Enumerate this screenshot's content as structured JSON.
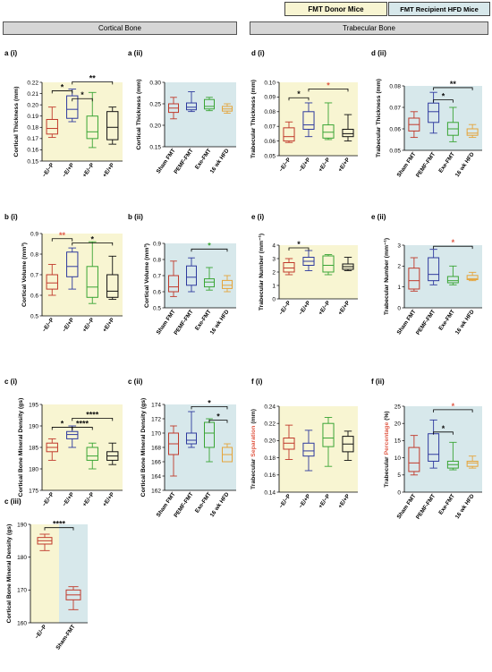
{
  "headers": {
    "cortical": "Cortical Bone",
    "trabecular": "Trabecular Bone",
    "legend_donor": "FMT Donor Mice",
    "legend_recipient": "FMT Recipient HFD Mice"
  },
  "colors": {
    "donor_bg": "#f8f5d2",
    "recipient_bg": "#d7e8eb",
    "header_bg": "#d6d6d6",
    "red": "#c0392b",
    "blue": "#2e3a9e",
    "green": "#3aa535",
    "black": "#111111",
    "orange": "#e5a43a",
    "sig_red": "#e05a47"
  },
  "donor_labels": [
    "−E/−P",
    "−E/+P",
    "+E/−P",
    "+E/+P"
  ],
  "recipient_labels": [
    "Sham FMT",
    "PEMF-FMT",
    "Exe-FMT",
    "16 wk HFD"
  ],
  "chart_data": [
    {
      "id": "ai",
      "panel": "a (i)",
      "type": "box",
      "bg": "donor",
      "ylabel": "Cortical Thickness (mm)",
      "ylim": [
        0.15,
        0.22
      ],
      "yticks": [
        0.15,
        0.16,
        0.17,
        0.18,
        0.19,
        0.2,
        0.21,
        0.22
      ],
      "ydec": 2,
      "categories": [
        "−E/−P",
        "−E/+P",
        "+E/−P",
        "+E/+P"
      ],
      "boxes": [
        {
          "min": 0.171,
          "q1": 0.174,
          "median": 0.179,
          "q3": 0.187,
          "max": 0.198,
          "color": "red"
        },
        {
          "min": 0.185,
          "q1": 0.188,
          "median": 0.196,
          "q3": 0.208,
          "max": 0.214,
          "color": "blue"
        },
        {
          "min": 0.162,
          "q1": 0.17,
          "median": 0.176,
          "q3": 0.19,
          "max": 0.211,
          "color": "green"
        },
        {
          "min": 0.165,
          "q1": 0.169,
          "median": 0.18,
          "q3": 0.194,
          "max": 0.198,
          "color": "black"
        }
      ],
      "sig": [
        {
          "from": 0,
          "to": 1,
          "y": 0.2125,
          "label": "*",
          "color": "black"
        },
        {
          "from": 1,
          "to": 2,
          "y": 0.2055,
          "label": "*",
          "color": "black"
        },
        {
          "from": 1,
          "to": 3,
          "y": 0.2205,
          "label": "**",
          "color": "black"
        }
      ]
    },
    {
      "id": "aii",
      "panel": "a (ii)",
      "type": "box",
      "bg": "recipient",
      "ylabel": "Cortical Thickness (mm)",
      "ylim": [
        0.15,
        0.3
      ],
      "yticks": [
        0.15,
        0.2,
        0.25,
        0.3
      ],
      "ydec": 2,
      "categories": [
        "Sham FMT",
        "PEMF-FMT",
        "Exe-FMT",
        "16 wk HFD"
      ],
      "boxes": [
        {
          "min": 0.215,
          "q1": 0.23,
          "median": 0.24,
          "q3": 0.25,
          "max": 0.265,
          "color": "red"
        },
        {
          "min": 0.232,
          "q1": 0.236,
          "median": 0.242,
          "q3": 0.252,
          "max": 0.278,
          "color": "blue"
        },
        {
          "min": 0.234,
          "q1": 0.238,
          "median": 0.244,
          "q3": 0.26,
          "max": 0.265,
          "color": "green"
        },
        {
          "min": 0.228,
          "q1": 0.233,
          "median": 0.238,
          "q3": 0.244,
          "max": 0.25,
          "color": "orange"
        }
      ],
      "sig": []
    },
    {
      "id": "di",
      "panel": "d (i)",
      "type": "box",
      "bg": "donor",
      "ylabel": "Trabecular Thickness (mm)",
      "ylim": [
        0.05,
        0.1
      ],
      "yticks": [
        0.05,
        0.06,
        0.07,
        0.08,
        0.09,
        0.1
      ],
      "ydec": 2,
      "categories": [
        "−E/−P",
        "−E/+P",
        "+E/−P",
        "+E/+P"
      ],
      "boxes": [
        {
          "min": 0.059,
          "q1": 0.06,
          "median": 0.063,
          "q3": 0.069,
          "max": 0.073,
          "color": "red"
        },
        {
          "min": 0.063,
          "q1": 0.068,
          "median": 0.071,
          "q3": 0.08,
          "max": 0.086,
          "color": "blue"
        },
        {
          "min": 0.061,
          "q1": 0.062,
          "median": 0.066,
          "q3": 0.071,
          "max": 0.086,
          "color": "green"
        },
        {
          "min": 0.06,
          "q1": 0.063,
          "median": 0.065,
          "q3": 0.068,
          "max": 0.078,
          "color": "black"
        }
      ],
      "sig": [
        {
          "from": 0,
          "to": 1,
          "y": 0.0895,
          "label": "*",
          "color": "black"
        },
        {
          "from": 1,
          "to": 3,
          "y": 0.0955,
          "label": "*",
          "color": "sig_red"
        }
      ]
    },
    {
      "id": "dii",
      "panel": "d (ii)",
      "type": "box",
      "bg": "recipient",
      "ylabel": "Trabecular Thickness (mm)",
      "ylim": [
        0.05,
        0.08
      ],
      "yticks": [
        0.05,
        0.06,
        0.07,
        0.08
      ],
      "ydec": 2,
      "categories": [
        "Sham FMT",
        "PEMF-FMT",
        "Exe-FMT",
        "16 wk HFD"
      ],
      "boxes": [
        {
          "min": 0.056,
          "q1": 0.059,
          "median": 0.062,
          "q3": 0.065,
          "max": 0.068,
          "color": "red"
        },
        {
          "min": 0.058,
          "q1": 0.063,
          "median": 0.068,
          "q3": 0.072,
          "max": 0.077,
          "color": "blue"
        },
        {
          "min": 0.054,
          "q1": 0.057,
          "median": 0.06,
          "q3": 0.063,
          "max": 0.07,
          "color": "green"
        },
        {
          "min": 0.056,
          "q1": 0.057,
          "median": 0.058,
          "q3": 0.06,
          "max": 0.062,
          "color": "orange"
        }
      ],
      "sig": [
        {
          "from": 1,
          "to": 2,
          "y": 0.0735,
          "label": "*",
          "color": "black"
        },
        {
          "from": 1,
          "to": 3,
          "y": 0.0792,
          "label": "**",
          "color": "black"
        }
      ]
    },
    {
      "id": "bi",
      "panel": "b (i)",
      "type": "box",
      "bg": "donor",
      "ylabel": "Cortical Volume (mm³)",
      "ylim": [
        0.5,
        0.9
      ],
      "yticks": [
        0.5,
        0.6,
        0.7,
        0.8,
        0.9
      ],
      "ydec": 1,
      "categories": [
        "−E/−P",
        "−E/+P",
        "+E/−P",
        "+E/+P"
      ],
      "boxes": [
        {
          "min": 0.6,
          "q1": 0.63,
          "median": 0.66,
          "q3": 0.7,
          "max": 0.75,
          "color": "red"
        },
        {
          "min": 0.63,
          "q1": 0.69,
          "median": 0.74,
          "q3": 0.81,
          "max": 0.83,
          "color": "blue"
        },
        {
          "min": 0.56,
          "q1": 0.59,
          "median": 0.64,
          "q3": 0.74,
          "max": 0.86,
          "color": "green"
        },
        {
          "min": 0.58,
          "q1": 0.59,
          "median": 0.62,
          "q3": 0.7,
          "max": 0.79,
          "color": "black"
        }
      ],
      "sig": [
        {
          "from": 0,
          "to": 1,
          "y": 0.875,
          "label": "**",
          "color": "sig_red"
        },
        {
          "from": 1,
          "to": 3,
          "y": 0.855,
          "label": "*",
          "color": "black"
        }
      ]
    },
    {
      "id": "bii",
      "panel": "b (ii)",
      "type": "box",
      "bg": "recipient",
      "ylabel": "Cortical Volume (mm³)",
      "ylim": [
        0.5,
        0.9
      ],
      "yticks": [
        0.5,
        0.6,
        0.7,
        0.8,
        0.9
      ],
      "ydec": 1,
      "categories": [
        "Sham FMT",
        "PEMF-FMT",
        "Exe-FMT",
        "16 wk HFD"
      ],
      "boxes": [
        {
          "min": 0.57,
          "q1": 0.6,
          "median": 0.63,
          "q3": 0.7,
          "max": 0.79,
          "color": "red"
        },
        {
          "min": 0.6,
          "q1": 0.64,
          "median": 0.69,
          "q3": 0.76,
          "max": 0.81,
          "color": "blue"
        },
        {
          "min": 0.61,
          "q1": 0.63,
          "median": 0.66,
          "q3": 0.68,
          "max": 0.75,
          "color": "green"
        },
        {
          "min": 0.6,
          "q1": 0.62,
          "median": 0.64,
          "q3": 0.67,
          "max": 0.7,
          "color": "orange"
        }
      ],
      "sig": [
        {
          "from": 1,
          "to": 3,
          "y": 0.865,
          "label": "*",
          "color": "green"
        }
      ]
    },
    {
      "id": "ei",
      "panel": "e (i)",
      "type": "box",
      "bg": "donor",
      "ylabel": "Trabecular Number (mm⁻¹)",
      "ylim": [
        0,
        4
      ],
      "yticks": [
        0,
        1,
        2,
        3,
        4
      ],
      "ydec": 0,
      "categories": [
        "−E/−P",
        "−E/+P",
        "+E/−P",
        "+E/+P"
      ],
      "boxes": [
        {
          "min": 1.8,
          "q1": 2.0,
          "median": 2.3,
          "q3": 2.7,
          "max": 3.0,
          "color": "red"
        },
        {
          "min": 2.1,
          "q1": 2.5,
          "median": 2.8,
          "q3": 3.1,
          "max": 3.6,
          "color": "blue"
        },
        {
          "min": 1.8,
          "q1": 2.0,
          "median": 2.5,
          "q3": 3.2,
          "max": 3.3,
          "color": "green"
        },
        {
          "min": 2.1,
          "q1": 2.2,
          "median": 2.4,
          "q3": 2.6,
          "max": 3.1,
          "color": "black"
        }
      ],
      "sig": [
        {
          "from": 0,
          "to": 1,
          "y": 3.8,
          "label": "*",
          "color": "black"
        }
      ]
    },
    {
      "id": "eii",
      "panel": "e (ii)",
      "type": "box",
      "bg": "recipient",
      "ylabel": "Trabecular Number (mm⁻¹)",
      "ylim": [
        0,
        3
      ],
      "yticks": [
        0,
        1,
        2,
        3
      ],
      "ydec": 0,
      "categories": [
        "Sham FMT",
        "PEMF-FMT",
        "Exe-FMT",
        "16 wk HFD"
      ],
      "boxes": [
        {
          "min": 0.8,
          "q1": 0.9,
          "median": 1.3,
          "q3": 1.9,
          "max": 2.4,
          "color": "red"
        },
        {
          "min": 1.1,
          "q1": 1.3,
          "median": 1.6,
          "q3": 2.4,
          "max": 2.8,
          "color": "blue"
        },
        {
          "min": 1.1,
          "q1": 1.2,
          "median": 1.3,
          "q3": 1.5,
          "max": 2.0,
          "color": "green"
        },
        {
          "min": 1.3,
          "q1": 1.35,
          "median": 1.4,
          "q3": 1.55,
          "max": 1.7,
          "color": "orange"
        }
      ],
      "sig": [
        {
          "from": 1,
          "to": 3,
          "y": 2.95,
          "label": "*",
          "color": "sig_red"
        }
      ]
    },
    {
      "id": "ci",
      "panel": "c (i)",
      "type": "box",
      "bg": "donor",
      "ylabel": "Cortical Bone Mineral Density (gs)",
      "ylim": [
        175,
        195
      ],
      "yticks": [
        175,
        180,
        185,
        190,
        195
      ],
      "ydec": 0,
      "categories": [
        "−E/−P",
        "−E/+P",
        "+E/−P",
        "+E/+P"
      ],
      "boxes": [
        {
          "min": 182,
          "q1": 184,
          "median": 185,
          "q3": 186,
          "max": 187,
          "color": "red"
        },
        {
          "min": 185,
          "q1": 187,
          "median": 188,
          "q3": 188.7,
          "max": 190,
          "color": "blue"
        },
        {
          "min": 180,
          "q1": 182,
          "median": 183,
          "q3": 185,
          "max": 186,
          "color": "green"
        },
        {
          "min": 181,
          "q1": 182,
          "median": 183,
          "q3": 184,
          "max": 186,
          "color": "black"
        }
      ],
      "sig": [
        {
          "from": 0,
          "to": 1,
          "y": 189.7,
          "label": "*",
          "color": "black"
        },
        {
          "from": 1,
          "to": 2,
          "y": 189.7,
          "label": "****",
          "color": "black"
        },
        {
          "from": 1,
          "to": 3,
          "y": 191.8,
          "label": "****",
          "color": "black"
        }
      ]
    },
    {
      "id": "cii",
      "panel": "c (ii)",
      "type": "box",
      "bg": "recipient",
      "ylabel": "Cortical Bone Mineral Density (gs)",
      "ylim": [
        162,
        174
      ],
      "yticks": [
        162,
        164,
        166,
        168,
        170,
        172,
        174
      ],
      "ydec": 0,
      "categories": [
        "Sham FMT",
        "PEMF-FMT",
        "Exe-FMT",
        "16 wk HFD"
      ],
      "boxes": [
        {
          "min": 164,
          "q1": 167,
          "median": 168.5,
          "q3": 170,
          "max": 171,
          "color": "red"
        },
        {
          "min": 168,
          "q1": 168.5,
          "median": 169,
          "q3": 170,
          "max": 173,
          "color": "blue"
        },
        {
          "min": 166,
          "q1": 168,
          "median": 170,
          "q3": 171.5,
          "max": 172,
          "color": "green"
        },
        {
          "min": 166,
          "q1": 166,
          "median": 167,
          "q3": 168,
          "max": 168.5,
          "color": "orange"
        }
      ],
      "sig": [
        {
          "from": 1,
          "to": 3,
          "y": 173.7,
          "label": "*",
          "color": "black"
        },
        {
          "from": 2,
          "to": 3,
          "y": 171.8,
          "label": "*",
          "color": "black"
        }
      ]
    },
    {
      "id": "fi",
      "panel": "f (i)",
      "type": "box",
      "bg": "donor",
      "ylabel": "Trabecular Separation (mm)",
      "ylabel_parts": [
        {
          "text": "Trabecular ",
          "color": "black"
        },
        {
          "text": "Separation",
          "color": "sig_red"
        },
        {
          "text": " (mm)",
          "color": "black"
        }
      ],
      "ylim": [
        0.14,
        0.24
      ],
      "yticks": [
        0.14,
        0.16,
        0.18,
        0.2,
        0.22,
        0.24
      ],
      "ydec": 2,
      "categories": [
        "−E/−P",
        "−E/+P",
        "+E/−P",
        "+E/+P"
      ],
      "boxes": [
        {
          "min": 0.178,
          "q1": 0.19,
          "median": 0.197,
          "q3": 0.203,
          "max": 0.218,
          "color": "red"
        },
        {
          "min": 0.165,
          "q1": 0.182,
          "median": 0.188,
          "q3": 0.197,
          "max": 0.212,
          "color": "blue"
        },
        {
          "min": 0.17,
          "q1": 0.193,
          "median": 0.203,
          "q3": 0.22,
          "max": 0.227,
          "color": "green"
        },
        {
          "min": 0.177,
          "q1": 0.187,
          "median": 0.196,
          "q3": 0.205,
          "max": 0.211,
          "color": "black"
        }
      ],
      "sig": []
    },
    {
      "id": "fii",
      "panel": "f (ii)",
      "type": "box",
      "bg": "recipient",
      "ylabel": "Trabecular Percentage (%)",
      "ylabel_parts": [
        {
          "text": "Trabecular ",
          "color": "black"
        },
        {
          "text": "Percentage",
          "color": "sig_red"
        },
        {
          "text": " (%)",
          "color": "black"
        }
      ],
      "ylim": [
        0,
        25
      ],
      "yticks": [
        0,
        5,
        10,
        15,
        20,
        25
      ],
      "ydec": 0,
      "categories": [
        "Sham FMT",
        "PEMF-FMT",
        "Exe-FMT",
        "16 wk HFD"
      ],
      "boxes": [
        {
          "min": 5,
          "q1": 6,
          "median": 8.5,
          "q3": 13,
          "max": 16.5,
          "color": "red"
        },
        {
          "min": 7,
          "q1": 9,
          "median": 11,
          "q3": 17,
          "max": 21,
          "color": "blue"
        },
        {
          "min": 6.5,
          "q1": 7,
          "median": 8,
          "q3": 9,
          "max": 14.5,
          "color": "green"
        },
        {
          "min": 7,
          "q1": 7.5,
          "median": 8.5,
          "q3": 9,
          "max": 10.5,
          "color": "orange"
        }
      ],
      "sig": [
        {
          "from": 1,
          "to": 2,
          "y": 17.5,
          "label": "*",
          "color": "black"
        },
        {
          "from": 1,
          "to": 3,
          "y": 24,
          "label": "*",
          "color": "sig_red"
        }
      ]
    },
    {
      "id": "ciii",
      "panel": "c (iii)",
      "type": "box",
      "bg": "split",
      "ylabel": "Cortical Bone Mineral Density (gs)",
      "ylim": [
        160,
        190
      ],
      "yticks": [
        160,
        170,
        180,
        190
      ],
      "ydec": 0,
      "categories": [
        "−E/−P",
        "Sham-FMT"
      ],
      "boxes": [
        {
          "min": 182,
          "q1": 184,
          "median": 185,
          "q3": 186,
          "max": 187,
          "color": "red"
        },
        {
          "min": 164,
          "q1": 167,
          "median": 168.5,
          "q3": 170,
          "max": 171,
          "color": "red"
        }
      ],
      "sig": [
        {
          "from": 0,
          "to": 1,
          "y": 189,
          "label": "****",
          "color": "black"
        }
      ]
    }
  ]
}
